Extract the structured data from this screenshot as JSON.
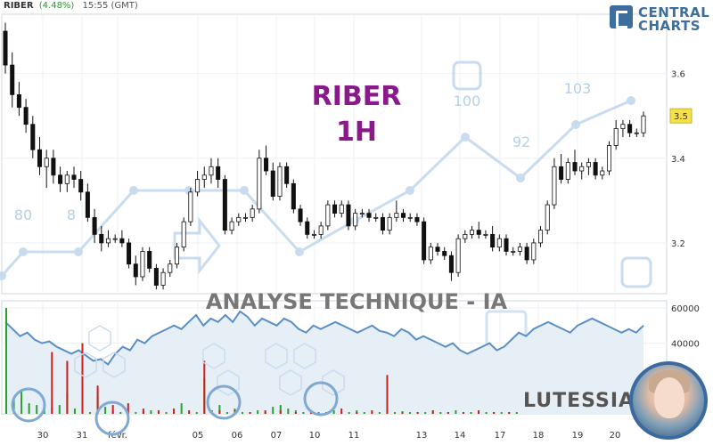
{
  "header": {
    "symbol": "RIBER",
    "change": "(4.48%)",
    "time": "15:55 (GMT)"
  },
  "logo": {
    "line1": "CENTRAL",
    "line2": "CHARTS",
    "color": "#3d6e9c"
  },
  "watermark": {
    "title": "RIBER",
    "timeframe": "1H",
    "subtitle": "ANALYSE TECHNIQUE - IA",
    "scores": [
      "80",
      "8",
      "100",
      "92",
      "103"
    ]
  },
  "brand": {
    "name": "LUTESSIA"
  },
  "chart_data": {
    "type": "candlestick",
    "price_axis": {
      "ticks": [
        3.6,
        3.4,
        3.2
      ],
      "ylim": [
        3.08,
        3.74
      ]
    },
    "volume_axis": {
      "ticks": [
        60000,
        40000
      ],
      "tick_labels": [
        "60000",
        "40000"
      ],
      "ylim": [
        0,
        64000
      ]
    },
    "x_tick_labels": [
      "30",
      "31",
      "févr.",
      "05",
      "06",
      "07",
      "10",
      "11",
      "13",
      "14",
      "17",
      "18",
      "19",
      "20"
    ],
    "last_price_label": "3.5",
    "colors": {
      "up": "#2aa02a",
      "down": "#cc1f1f",
      "candle": "#111111",
      "overlay": "#a9c6e4"
    },
    "candles": [
      [
        3.7,
        3.72,
        3.6,
        3.62
      ],
      [
        3.62,
        3.65,
        3.52,
        3.55
      ],
      [
        3.55,
        3.58,
        3.5,
        3.52
      ],
      [
        3.52,
        3.54,
        3.46,
        3.48
      ],
      [
        3.48,
        3.5,
        3.4,
        3.42
      ],
      [
        3.42,
        3.45,
        3.36,
        3.38
      ],
      [
        3.38,
        3.42,
        3.33,
        3.4
      ],
      [
        3.4,
        3.42,
        3.34,
        3.36
      ],
      [
        3.36,
        3.38,
        3.32,
        3.34
      ],
      [
        3.34,
        3.37,
        3.32,
        3.36
      ],
      [
        3.36,
        3.38,
        3.33,
        3.35
      ],
      [
        3.35,
        3.37,
        3.3,
        3.32
      ],
      [
        3.32,
        3.34,
        3.25,
        3.26
      ],
      [
        3.26,
        3.28,
        3.2,
        3.22
      ],
      [
        3.22,
        3.24,
        3.18,
        3.2
      ],
      [
        3.2,
        3.23,
        3.19,
        3.21
      ],
      [
        3.21,
        3.22,
        3.2,
        3.21
      ],
      [
        3.21,
        3.23,
        3.19,
        3.2
      ],
      [
        3.2,
        3.21,
        3.14,
        3.15
      ],
      [
        3.15,
        3.17,
        3.1,
        3.12
      ],
      [
        3.12,
        3.19,
        3.11,
        3.18
      ],
      [
        3.18,
        3.19,
        3.13,
        3.14
      ],
      [
        3.14,
        3.15,
        3.09,
        3.1
      ],
      [
        3.1,
        3.14,
        3.09,
        3.13
      ],
      [
        3.13,
        3.16,
        3.12,
        3.15
      ],
      [
        3.15,
        3.2,
        3.14,
        3.19
      ],
      [
        3.19,
        3.26,
        3.18,
        3.25
      ],
      [
        3.25,
        3.33,
        3.24,
        3.32
      ],
      [
        3.32,
        3.37,
        3.31,
        3.35
      ],
      [
        3.35,
        3.38,
        3.33,
        3.36
      ],
      [
        3.36,
        3.4,
        3.34,
        3.38
      ],
      [
        3.38,
        3.4,
        3.33,
        3.35
      ],
      [
        3.35,
        3.36,
        3.22,
        3.23
      ],
      [
        3.23,
        3.26,
        3.22,
        3.25
      ],
      [
        3.25,
        3.27,
        3.24,
        3.26
      ],
      [
        3.26,
        3.27,
        3.25,
        3.26
      ],
      [
        3.26,
        3.29,
        3.25,
        3.28
      ],
      [
        3.28,
        3.42,
        3.27,
        3.4
      ],
      [
        3.4,
        3.43,
        3.36,
        3.37
      ],
      [
        3.37,
        3.39,
        3.3,
        3.31
      ],
      [
        3.31,
        3.39,
        3.3,
        3.38
      ],
      [
        3.38,
        3.39,
        3.33,
        3.34
      ],
      [
        3.34,
        3.35,
        3.27,
        3.28
      ],
      [
        3.28,
        3.29,
        3.24,
        3.25
      ],
      [
        3.25,
        3.26,
        3.21,
        3.22
      ],
      [
        3.22,
        3.23,
        3.21,
        3.22
      ],
      [
        3.22,
        3.25,
        3.21,
        3.24
      ],
      [
        3.24,
        3.3,
        3.23,
        3.29
      ],
      [
        3.29,
        3.3,
        3.26,
        3.27
      ],
      [
        3.27,
        3.3,
        3.26,
        3.29
      ],
      [
        3.29,
        3.3,
        3.23,
        3.24
      ],
      [
        3.24,
        3.28,
        3.23,
        3.27
      ],
      [
        3.27,
        3.28,
        3.26,
        3.27
      ],
      [
        3.27,
        3.28,
        3.25,
        3.26
      ],
      [
        3.26,
        3.27,
        3.25,
        3.26
      ],
      [
        3.26,
        3.27,
        3.22,
        3.23
      ],
      [
        3.23,
        3.27,
        3.22,
        3.26
      ],
      [
        3.26,
        3.3,
        3.25,
        3.27
      ],
      [
        3.27,
        3.28,
        3.25,
        3.26
      ],
      [
        3.26,
        3.27,
        3.25,
        3.26
      ],
      [
        3.26,
        3.27,
        3.24,
        3.25
      ],
      [
        3.25,
        3.26,
        3.15,
        3.16
      ],
      [
        3.16,
        3.2,
        3.15,
        3.19
      ],
      [
        3.19,
        3.2,
        3.17,
        3.18
      ],
      [
        3.18,
        3.19,
        3.16,
        3.17
      ],
      [
        3.17,
        3.18,
        3.11,
        3.13
      ],
      [
        3.13,
        3.22,
        3.12,
        3.21
      ],
      [
        3.21,
        3.23,
        3.2,
        3.22
      ],
      [
        3.22,
        3.24,
        3.21,
        3.23
      ],
      [
        3.23,
        3.25,
        3.21,
        3.22
      ],
      [
        3.22,
        3.23,
        3.21,
        3.22
      ],
      [
        3.22,
        3.24,
        3.18,
        3.19
      ],
      [
        3.19,
        3.22,
        3.18,
        3.21
      ],
      [
        3.21,
        3.22,
        3.17,
        3.18
      ],
      [
        3.18,
        3.19,
        3.17,
        3.18
      ],
      [
        3.18,
        3.2,
        3.17,
        3.19
      ],
      [
        3.19,
        3.2,
        3.15,
        3.16
      ],
      [
        3.16,
        3.21,
        3.15,
        3.2
      ],
      [
        3.2,
        3.24,
        3.19,
        3.23
      ],
      [
        3.23,
        3.3,
        3.22,
        3.29
      ],
      [
        3.29,
        3.4,
        3.28,
        3.38
      ],
      [
        3.38,
        3.41,
        3.34,
        3.35
      ],
      [
        3.35,
        3.4,
        3.34,
        3.39
      ],
      [
        3.39,
        3.42,
        3.36,
        3.37
      ],
      [
        3.37,
        3.39,
        3.35,
        3.38
      ],
      [
        3.38,
        3.4,
        3.36,
        3.39
      ],
      [
        3.39,
        3.4,
        3.35,
        3.36
      ],
      [
        3.36,
        3.38,
        3.35,
        3.37
      ],
      [
        3.37,
        3.44,
        3.36,
        3.43
      ],
      [
        3.43,
        3.49,
        3.42,
        3.47
      ],
      [
        3.47,
        3.49,
        3.45,
        3.48
      ],
      [
        3.48,
        3.49,
        3.45,
        3.46
      ],
      [
        3.46,
        3.47,
        3.45,
        3.46
      ],
      [
        3.46,
        3.51,
        3.45,
        3.5
      ]
    ],
    "volume_up": [
      [
        0,
        60000
      ],
      [
        1,
        8000
      ],
      [
        2,
        13000
      ],
      [
        3,
        6000
      ],
      [
        4,
        5000
      ],
      [
        5,
        4000
      ],
      [
        6,
        4000
      ],
      [
        7,
        5000
      ],
      [
        8,
        12000
      ],
      [
        9,
        3000
      ],
      [
        10,
        2000
      ],
      [
        11,
        1000
      ],
      [
        12,
        10000
      ],
      [
        13,
        4000
      ],
      [
        14,
        2000
      ],
      [
        15,
        1000
      ],
      [
        16,
        2000
      ],
      [
        17,
        1000
      ],
      [
        18,
        1500
      ],
      [
        19,
        2000
      ],
      [
        20,
        1000
      ],
      [
        21,
        1000
      ],
      [
        22,
        2000
      ],
      [
        23,
        6000
      ],
      [
        24,
        1000
      ],
      [
        25,
        1000
      ],
      [
        26,
        20000
      ],
      [
        27,
        2000
      ],
      [
        28,
        5000
      ],
      [
        29,
        1000
      ],
      [
        30,
        3000
      ],
      [
        31,
        1000
      ],
      [
        32,
        1000
      ],
      [
        33,
        2000
      ],
      [
        34,
        1000
      ],
      [
        35,
        4000
      ],
      [
        36,
        5000
      ],
      [
        37,
        3000
      ],
      [
        38,
        2000
      ],
      [
        39,
        1000
      ],
      [
        40,
        1500
      ],
      [
        41,
        1000
      ],
      [
        42,
        1000
      ],
      [
        43,
        2000
      ],
      [
        44,
        1000
      ],
      [
        45,
        1000
      ],
      [
        46,
        2000
      ],
      [
        47,
        1000
      ],
      [
        48,
        1000
      ],
      [
        49,
        1000
      ],
      [
        50,
        2000
      ],
      [
        51,
        1000
      ],
      [
        52,
        1500
      ],
      [
        53,
        1000
      ],
      [
        54,
        1000
      ],
      [
        55,
        1000
      ],
      [
        56,
        2000
      ],
      [
        57,
        1000
      ],
      [
        58,
        1000
      ],
      [
        59,
        2000
      ],
      [
        60,
        1000
      ],
      [
        61,
        1000
      ],
      [
        62,
        1000
      ],
      [
        63,
        1000
      ],
      [
        64,
        1000
      ],
      [
        65,
        1000
      ],
      [
        66,
        1000
      ],
      [
        67,
        1000
      ]
    ],
    "volume_down": [
      [
        6,
        35000
      ],
      [
        8,
        30000
      ],
      [
        10,
        40000
      ],
      [
        12,
        16000
      ],
      [
        14,
        5000
      ],
      [
        16,
        6000
      ],
      [
        18,
        3000
      ],
      [
        20,
        2000
      ],
      [
        22,
        3000
      ],
      [
        24,
        2000
      ],
      [
        26,
        30000
      ],
      [
        28,
        2000
      ],
      [
        30,
        2000
      ],
      [
        32,
        1000
      ],
      [
        34,
        2000
      ],
      [
        36,
        2000
      ],
      [
        38,
        1000
      ],
      [
        40,
        2000
      ],
      [
        42,
        1000
      ],
      [
        44,
        3000
      ],
      [
        46,
        1000
      ],
      [
        48,
        2000
      ],
      [
        50,
        22000
      ],
      [
        52,
        1000
      ],
      [
        54,
        1000
      ],
      [
        56,
        2000
      ],
      [
        58,
        1000
      ],
      [
        60,
        1000
      ],
      [
        62,
        2000
      ],
      [
        64,
        1000
      ],
      [
        66,
        1000
      ]
    ],
    "volume_line": [
      52000,
      48000,
      44000,
      46000,
      42000,
      40000,
      41000,
      38000,
      36000,
      34000,
      36000,
      33000,
      30000,
      31000,
      28000,
      34000,
      38000,
      36000,
      42000,
      40000,
      44000,
      46000,
      48000,
      50000,
      48000,
      52000,
      56000,
      50000,
      54000,
      52000,
      56000,
      52000,
      58000,
      55000,
      50000,
      54000,
      52000,
      50000,
      54000,
      52000,
      48000,
      46000,
      50000,
      48000,
      50000,
      52000,
      50000,
      48000,
      46000,
      48000,
      50000,
      47000,
      46000,
      44000,
      48000,
      46000,
      42000,
      44000,
      42000,
      40000,
      38000,
      40000,
      36000,
      34000,
      36000,
      38000,
      40000,
      36000,
      38000,
      42000,
      46000,
      44000,
      48000,
      50000,
      52000,
      50000,
      48000,
      46000,
      50000,
      52000,
      54000,
      52000,
      50000,
      48000,
      46000,
      48000,
      46000,
      50000
    ]
  }
}
